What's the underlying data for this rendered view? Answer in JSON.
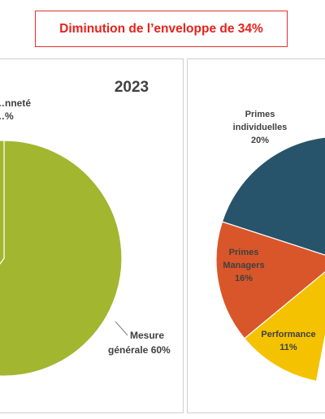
{
  "banner": {
    "text": "Diminution de l’enveloppe de 34%"
  },
  "colors": {
    "banner_text": "#e8211b",
    "banner_border": "#e03030",
    "mesure_generale": "#a2b630",
    "primes_individuelles": "#27536b",
    "primes_managers": "#d9562a",
    "performance": "#f5c200"
  },
  "chart_data": [
    {
      "type": "pie",
      "title": "2023",
      "slices": [
        {
          "label_lines": [
            "Mesure",
            "générale 60%"
          ],
          "value": 60,
          "color": "#a2b630"
        },
        {
          "label_lines": [
            "…nneté",
            "…%"
          ],
          "value": 40,
          "color": "#a2b630"
        }
      ]
    },
    {
      "type": "pie",
      "title": "",
      "slices": [
        {
          "label_lines": [
            "Primes",
            "individuelles",
            "20%"
          ],
          "value": 20,
          "color": "#27536b"
        },
        {
          "label_lines": [
            "Primes",
            "Managers",
            "16%"
          ],
          "value": 16,
          "color": "#d9562a"
        },
        {
          "label_lines": [
            "Performance",
            "11%"
          ],
          "value": 11,
          "color": "#f5c200"
        }
      ]
    }
  ]
}
